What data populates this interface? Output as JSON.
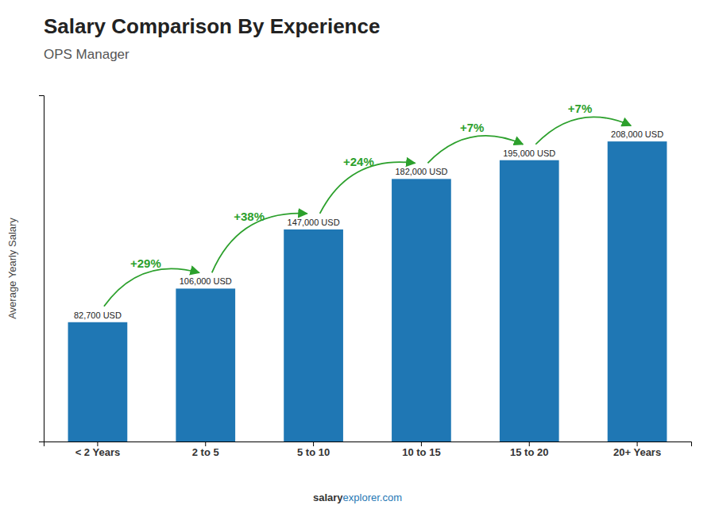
{
  "chart_data": {
    "type": "bar",
    "title": "Salary Comparison By Experience",
    "subtitle": "OPS Manager",
    "y_label": "Average Yearly Salary",
    "categories": [
      "< 2 Years",
      "2 to 5",
      "5 to 10",
      "10 to 15",
      "15 to 20",
      "20+ Years"
    ],
    "values": [
      82700,
      106000,
      147000,
      182000,
      195000,
      208000
    ],
    "value_labels": [
      "82,700 USD",
      "106,000 USD",
      "147,000 USD",
      "182,000 USD",
      "195,000 USD",
      "208,000 USD"
    ],
    "data_labels": true,
    "annotations": [
      "+29%",
      "+38%",
      "+24%",
      "+7%",
      "+7%"
    ],
    "watermark": [
      "salary",
      "explorer.com"
    ],
    "ylim": [
      0,
      240000
    ],
    "tick_labels": "x",
    "grid": false
  }
}
